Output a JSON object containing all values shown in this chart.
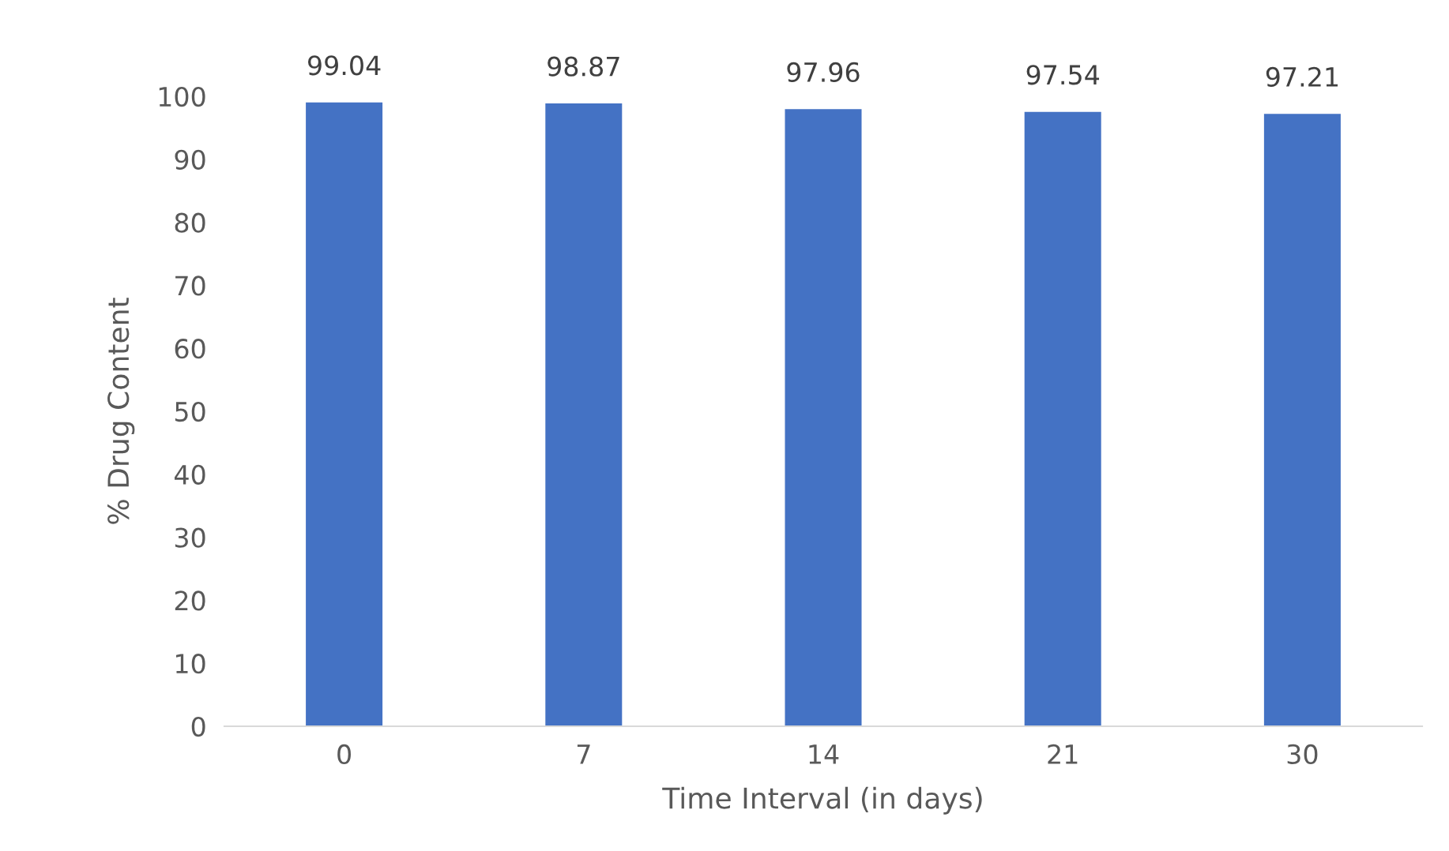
{
  "chart_data": {
    "type": "bar",
    "xlabel": "Time Interval (in days)",
    "ylabel": "% Drug Content",
    "categories": [
      "0",
      "7",
      "14",
      "21",
      "30"
    ],
    "values": [
      99.04,
      98.87,
      97.96,
      97.54,
      97.21
    ],
    "color": "#4472c4",
    "ylim": [
      0,
      100
    ],
    "yticks": [
      0,
      10,
      20,
      30,
      40,
      50,
      60,
      70,
      80,
      90,
      100
    ],
    "data_labels": true,
    "grid": false
  }
}
